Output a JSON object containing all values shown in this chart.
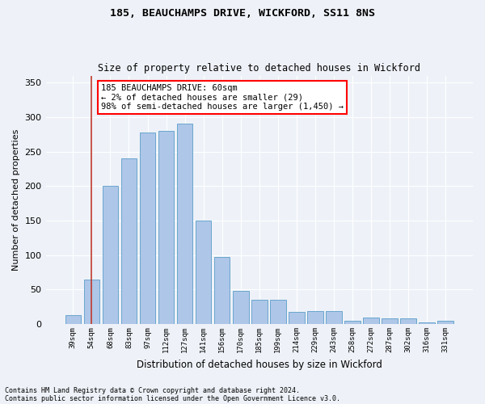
{
  "title1": "185, BEAUCHAMPS DRIVE, WICKFORD, SS11 8NS",
  "title2": "Size of property relative to detached houses in Wickford",
  "xlabel": "Distribution of detached houses by size in Wickford",
  "ylabel": "Number of detached properties",
  "categories": [
    "39sqm",
    "54sqm",
    "68sqm",
    "83sqm",
    "97sqm",
    "112sqm",
    "127sqm",
    "141sqm",
    "156sqm",
    "170sqm",
    "185sqm",
    "199sqm",
    "214sqm",
    "229sqm",
    "243sqm",
    "258sqm",
    "272sqm",
    "287sqm",
    "302sqm",
    "316sqm",
    "331sqm"
  ],
  "values": [
    13,
    65,
    200,
    240,
    278,
    280,
    290,
    150,
    97,
    48,
    35,
    35,
    18,
    19,
    19,
    5,
    9,
    8,
    8,
    3,
    5
  ],
  "bar_color": "#aec6e8",
  "bar_edge_color": "#5a9ec8",
  "vline_x": 1,
  "annotation_text": "185 BEAUCHAMPS DRIVE: 60sqm\n← 2% of detached houses are smaller (29)\n98% of semi-detached houses are larger (1,450) →",
  "annotation_box_color": "white",
  "annotation_box_edge_color": "red",
  "vline_color": "#c0392b",
  "footnote1": "Contains HM Land Registry data © Crown copyright and database right 2024.",
  "footnote2": "Contains public sector information licensed under the Open Government Licence v3.0.",
  "background_color": "#eef2f8",
  "grid_color": "white",
  "ylim": [
    0,
    360
  ],
  "yticks": [
    0,
    50,
    100,
    150,
    200,
    250,
    300,
    350
  ]
}
